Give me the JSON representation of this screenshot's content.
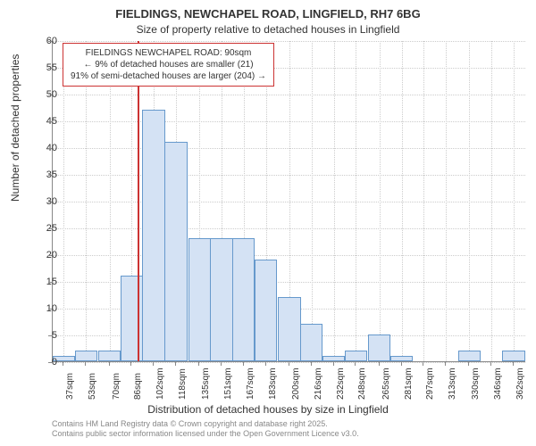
{
  "chart": {
    "type": "histogram",
    "title": "FIELDINGS, NEWCHAPEL ROAD, LINGFIELD, RH7 6BG",
    "subtitle": "Size of property relative to detached houses in Lingfield",
    "xlabel": "Distribution of detached houses by size in Lingfield",
    "ylabel": "Number of detached properties",
    "annotation": {
      "line1": "FIELDINGS NEWCHAPEL ROAD: 90sqm",
      "line2": "← 9% of detached houses are smaller (21)",
      "line3": "91% of semi-detached houses are larger (204) →",
      "border_color": "#cc3333",
      "text_color": "#333333"
    },
    "marker": {
      "x_value": 90,
      "color": "#cc3333"
    },
    "ylim": [
      0,
      60
    ],
    "ytick_step": 5,
    "yticks": [
      0,
      5,
      10,
      15,
      20,
      25,
      30,
      35,
      40,
      45,
      50,
      55,
      60
    ],
    "xlim": [
      29,
      371
    ],
    "xticks": [
      {
        "value": 37,
        "label": "37sqm"
      },
      {
        "value": 53,
        "label": "53sqm"
      },
      {
        "value": 70,
        "label": "70sqm"
      },
      {
        "value": 86,
        "label": "86sqm"
      },
      {
        "value": 102,
        "label": "102sqm"
      },
      {
        "value": 118,
        "label": "118sqm"
      },
      {
        "value": 135,
        "label": "135sqm"
      },
      {
        "value": 151,
        "label": "151sqm"
      },
      {
        "value": 167,
        "label": "167sqm"
      },
      {
        "value": 183,
        "label": "183sqm"
      },
      {
        "value": 200,
        "label": "200sqm"
      },
      {
        "value": 216,
        "label": "216sqm"
      },
      {
        "value": 232,
        "label": "232sqm"
      },
      {
        "value": 248,
        "label": "248sqm"
      },
      {
        "value": 265,
        "label": "265sqm"
      },
      {
        "value": 281,
        "label": "281sqm"
      },
      {
        "value": 297,
        "label": "297sqm"
      },
      {
        "value": 313,
        "label": "313sqm"
      },
      {
        "value": 330,
        "label": "330sqm"
      },
      {
        "value": 346,
        "label": "346sqm"
      },
      {
        "value": 362,
        "label": "362sqm"
      }
    ],
    "bars": [
      {
        "x": 37,
        "y": 1
      },
      {
        "x": 53,
        "y": 2
      },
      {
        "x": 70,
        "y": 2
      },
      {
        "x": 86,
        "y": 16
      },
      {
        "x": 102,
        "y": 47
      },
      {
        "x": 118,
        "y": 41
      },
      {
        "x": 135,
        "y": 23
      },
      {
        "x": 151,
        "y": 23
      },
      {
        "x": 167,
        "y": 23
      },
      {
        "x": 183,
        "y": 19
      },
      {
        "x": 200,
        "y": 12
      },
      {
        "x": 216,
        "y": 7
      },
      {
        "x": 232,
        "y": 1
      },
      {
        "x": 248,
        "y": 2
      },
      {
        "x": 265,
        "y": 5
      },
      {
        "x": 281,
        "y": 1
      },
      {
        "x": 297,
        "y": 0
      },
      {
        "x": 313,
        "y": 0
      },
      {
        "x": 330,
        "y": 2
      },
      {
        "x": 346,
        "y": 0
      },
      {
        "x": 362,
        "y": 2
      }
    ],
    "bar_width": 16.3,
    "bar_color": "#d4e2f4",
    "bar_border_color": "#6699cc",
    "background_color": "#ffffff",
    "grid_color": "#cccccc",
    "axis_color": "#888888",
    "title_fontsize": 13,
    "subtitle_fontsize": 12,
    "label_fontsize": 12,
    "tick_fontsize": 11
  },
  "footer": {
    "line1": "Contains HM Land Registry data © Crown copyright and database right 2025.",
    "line2": "Contains public sector information licensed under the Open Government Licence v3.0."
  }
}
